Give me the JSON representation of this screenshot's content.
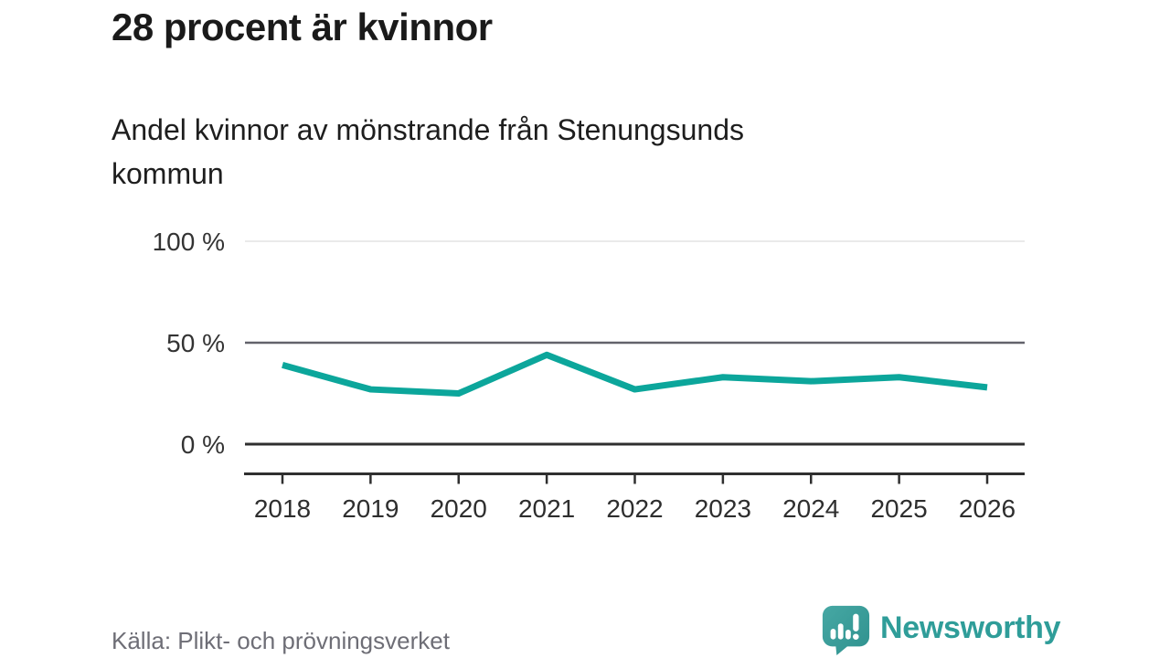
{
  "header": {
    "title": "28 procent är kvinnor",
    "subtitle": "Andel kvinnor av mönstrande från Stenungsunds kommun"
  },
  "chart_data": {
    "type": "line",
    "title": "28 procent är kvinnor",
    "subtitle": "Andel kvinnor av mönstrande från Stenungsunds kommun",
    "categories": [
      "2018",
      "2019",
      "2020",
      "2021",
      "2022",
      "2023",
      "2024",
      "2025",
      "2026"
    ],
    "series": [
      {
        "name": "Andel kvinnor av mönstrande",
        "values": [
          39,
          27,
          25,
          44,
          27,
          33,
          31,
          33,
          28
        ]
      }
    ],
    "unit": "percent",
    "ylim": [
      0,
      100
    ],
    "yticks": [
      {
        "value": 0,
        "label": "0 %"
      },
      {
        "value": 50,
        "label": "50 %"
      },
      {
        "value": 100,
        "label": "100 %"
      }
    ],
    "grid": true,
    "legend": "none",
    "line_color": "#0CA69B"
  },
  "footer": {
    "source": "Källa: Plikt- och prövningsverket",
    "logo_text": "Newsworthy",
    "logo_icon": "newsworthy-speech-bubble-bar-chart-icon",
    "logo_color": "#2F9D99"
  },
  "colors": {
    "line": "#0CA69B",
    "grid_light": "#E3E3E3",
    "grid_mid": "#63636B",
    "grid_dark": "#2F2F2F",
    "axis_text": "#2E2E2E",
    "source_text": "#6E6E76",
    "title_text": "#1A1A1A"
  }
}
